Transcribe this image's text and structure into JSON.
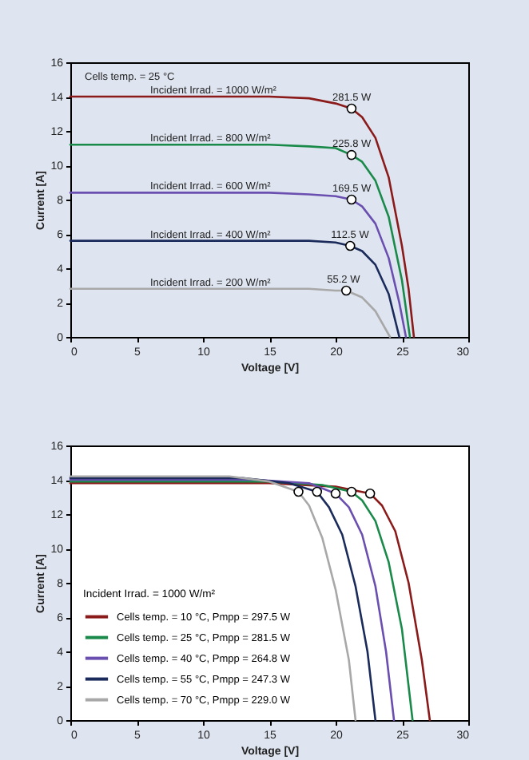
{
  "chart_data": [
    {
      "type": "line",
      "xlabel": "Voltage [V]",
      "ylabel": "Current [A]",
      "xlim": [
        0,
        30
      ],
      "ylim": [
        0,
        16
      ],
      "xticks": [
        0,
        5,
        10,
        15,
        20,
        25,
        30
      ],
      "yticks": [
        0,
        2,
        4,
        6,
        8,
        10,
        12,
        14,
        16
      ],
      "grid": false,
      "legend": false,
      "annotations": [
        "Cells temp. = 25 °C",
        {
          "text": "281.5 W",
          "x": 21.2,
          "y": 13.3
        },
        {
          "text": "225.8 W",
          "x": 21.2,
          "y": 10.6
        },
        {
          "text": "169.5 W",
          "x": 21.2,
          "y": 8.0
        },
        {
          "text": "112.5 W",
          "x": 21.1,
          "y": 5.3
        },
        {
          "text": "55.2 W",
          "x": 20.8,
          "y": 2.7
        }
      ],
      "series": [
        {
          "name": "Incident Irrad. = 1000 W/m²",
          "color": "#8b1a1a",
          "x": [
            0,
            10,
            15,
            18,
            20,
            21.2,
            22,
            23,
            24,
            25,
            25.5,
            25.9
          ],
          "values": [
            14,
            14,
            14,
            13.9,
            13.6,
            13.3,
            12.8,
            11.6,
            9.3,
            5.3,
            2.8,
            0
          ]
        },
        {
          "name": "Incident Irrad. = 800 W/m²",
          "color": "#1a8a4a",
          "x": [
            0,
            10,
            15,
            18,
            20,
            21.2,
            22,
            23,
            24,
            25,
            25.6
          ],
          "values": [
            11.2,
            11.2,
            11.2,
            11.1,
            11.0,
            10.6,
            10.2,
            9.1,
            7.0,
            3.3,
            0
          ]
        },
        {
          "name": "Incident Irrad. = 600 W/m²",
          "color": "#6a4fb0",
          "x": [
            0,
            15,
            18,
            20,
            21.2,
            22,
            23,
            24,
            24.8,
            25.3
          ],
          "values": [
            8.4,
            8.4,
            8.3,
            8.2,
            8.0,
            7.6,
            6.6,
            4.6,
            2.0,
            0
          ]
        },
        {
          "name": "Incident Irrad. = 400 W/m²",
          "color": "#1a2a5a",
          "x": [
            0,
            15,
            18,
            20,
            21.1,
            22,
            23,
            24,
            24.8
          ],
          "values": [
            5.6,
            5.6,
            5.6,
            5.5,
            5.3,
            5.0,
            4.2,
            2.5,
            0
          ]
        },
        {
          "name": "Incident Irrad. = 200 W/m²",
          "color": "#a8a8a8",
          "x": [
            0,
            15,
            18,
            20,
            20.8,
            22,
            23,
            24.1
          ],
          "values": [
            2.8,
            2.8,
            2.8,
            2.7,
            2.7,
            2.3,
            1.5,
            0
          ]
        },
        {
          "type": "scatter",
          "color": "#ffffff",
          "x": [
            21.2,
            21.2,
            21.2,
            21.1,
            20.8
          ],
          "values": [
            13.3,
            10.6,
            8.0,
            5.3,
            2.7
          ]
        }
      ]
    },
    {
      "type": "line",
      "xlabel": "Voltage [V]",
      "ylabel": "Current [A]",
      "xlim": [
        0,
        30
      ],
      "ylim": [
        0,
        16
      ],
      "xticks": [
        0,
        5,
        10,
        15,
        20,
        25,
        30
      ],
      "yticks": [
        0,
        2,
        4,
        6,
        8,
        10,
        12,
        14,
        16
      ],
      "grid": false,
      "legend": "bottom left",
      "legend_title": "Incident Irrad. = 1000 W/m²",
      "series": [
        {
          "name": "Cells temp. = 10 °C,  Pmpp = 297.5 W",
          "color": "#8b1a1a",
          "x": [
            0,
            15,
            20,
            22.6,
            23.5,
            24.5,
            25.5,
            26.5,
            27.1
          ],
          "values": [
            13.8,
            13.8,
            13.6,
            13.2,
            12.5,
            11,
            8,
            3.5,
            0
          ]
        },
        {
          "name": "Cells temp. = 25 °C,  Pmpp = 281.5 W",
          "color": "#1a8a4a",
          "x": [
            0,
            15,
            19,
            21.2,
            22,
            23,
            24,
            25,
            25.8
          ],
          "values": [
            13.9,
            13.9,
            13.7,
            13.3,
            12.8,
            11.6,
            9.2,
            5.3,
            0
          ]
        },
        {
          "name": "Cells temp. = 40 °C,  Pmpp = 264.8 W",
          "color": "#6a4fb0",
          "x": [
            0,
            14,
            18,
            20,
            21,
            22,
            23,
            23.8,
            24.4
          ],
          "values": [
            14.0,
            14.0,
            13.8,
            13.2,
            12.4,
            10.8,
            7.8,
            4,
            0
          ]
        },
        {
          "name": "Cells temp. = 55 °C,  Pmpp = 247.3 W",
          "color": "#1a2a5a",
          "x": [
            0,
            13,
            16.5,
            18.6,
            19.5,
            20.5,
            21.5,
            22.4,
            23
          ],
          "values": [
            14.1,
            14.1,
            13.8,
            13.3,
            12.4,
            10.8,
            7.8,
            4,
            0
          ]
        },
        {
          "name": "Cells temp. = 70 °C,  Pmpp = 229.0 W",
          "color": "#a8a8a8",
          "x": [
            0,
            12,
            15,
            17.2,
            18,
            19,
            20,
            21,
            21.5
          ],
          "values": [
            14.2,
            14.2,
            13.9,
            13.3,
            12.5,
            10.6,
            7.6,
            3.5,
            0
          ]
        },
        {
          "type": "scatter",
          "color": "#ffffff",
          "x": [
            22.6,
            21.2,
            20.0,
            18.6,
            17.2
          ],
          "values": [
            13.2,
            13.3,
            13.2,
            13.3,
            13.3
          ]
        }
      ]
    }
  ]
}
